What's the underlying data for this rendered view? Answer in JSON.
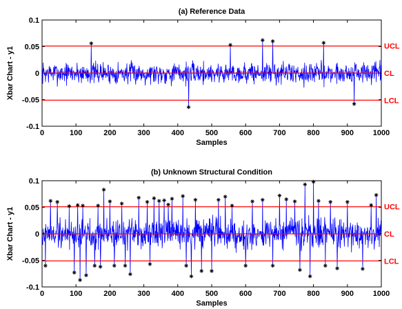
{
  "chart_data": [
    {
      "type": "line",
      "title": "(a) Reference Data",
      "xlabel": "Samples",
      "ylabel": "Xbar Chart - y1",
      "xlim": [
        0,
        1000
      ],
      "ylim": [
        -0.1,
        0.1
      ],
      "xticks": [
        0,
        100,
        200,
        300,
        400,
        500,
        600,
        700,
        800,
        900,
        1000
      ],
      "yticks": [
        -0.1,
        -0.05,
        0,
        0.05,
        0.1
      ],
      "ytick_labels": [
        "-0.1",
        "-0.05",
        "0",
        "0.05",
        "0.1"
      ],
      "series_color": "#0000ff",
      "control_color": "#ff0000",
      "control_limits": [
        {
          "label": "UCL",
          "value": 0.051
        },
        {
          "label": "CL",
          "value": 0.0
        },
        {
          "label": "LCL",
          "value": -0.051
        }
      ],
      "noise_amplitude": 0.03,
      "seed": 7,
      "n": 1000,
      "outliers": [
        {
          "x": 145,
          "y": 0.056
        },
        {
          "x": 432,
          "y": -0.064
        },
        {
          "x": 555,
          "y": 0.053
        },
        {
          "x": 650,
          "y": 0.062
        },
        {
          "x": 680,
          "y": 0.06
        },
        {
          "x": 830,
          "y": 0.057
        },
        {
          "x": 920,
          "y": -0.058
        }
      ]
    },
    {
      "type": "line",
      "title": "(b) Unknown Structural Condition",
      "xlabel": "Samples",
      "ylabel": "Xbar Chart - y1",
      "xlim": [
        0,
        1000
      ],
      "ylim": [
        -0.1,
        0.1
      ],
      "xticks": [
        0,
        100,
        200,
        300,
        400,
        500,
        600,
        700,
        800,
        900,
        1000
      ],
      "yticks": [
        -0.1,
        -0.05,
        0,
        0.05,
        0.1
      ],
      "ytick_labels": [
        "-0.1",
        "-0.05",
        "0",
        "0.05",
        "0.1"
      ],
      "series_color": "#0000ff",
      "control_color": "#ff0000",
      "control_limits": [
        {
          "label": "UCL",
          "value": 0.051
        },
        {
          "label": "CL",
          "value": 0.0
        },
        {
          "label": "LCL",
          "value": -0.051
        }
      ],
      "noise_amplitude": 0.042,
      "seed": 19,
      "n": 1000,
      "outliers": [
        {
          "x": 10,
          "y": -0.06
        },
        {
          "x": 25,
          "y": 0.062
        },
        {
          "x": 45,
          "y": 0.06
        },
        {
          "x": 80,
          "y": 0.052
        },
        {
          "x": 95,
          "y": -0.073
        },
        {
          "x": 105,
          "y": 0.054
        },
        {
          "x": 112,
          "y": -0.087
        },
        {
          "x": 120,
          "y": 0.053
        },
        {
          "x": 130,
          "y": -0.078
        },
        {
          "x": 155,
          "y": -0.06
        },
        {
          "x": 165,
          "y": 0.053
        },
        {
          "x": 172,
          "y": -0.062
        },
        {
          "x": 182,
          "y": 0.083
        },
        {
          "x": 200,
          "y": 0.061
        },
        {
          "x": 213,
          "y": -0.06
        },
        {
          "x": 235,
          "y": 0.057
        },
        {
          "x": 245,
          "y": -0.06
        },
        {
          "x": 260,
          "y": -0.076
        },
        {
          "x": 285,
          "y": 0.068
        },
        {
          "x": 310,
          "y": 0.06
        },
        {
          "x": 318,
          "y": -0.057
        },
        {
          "x": 330,
          "y": 0.067
        },
        {
          "x": 345,
          "y": 0.062
        },
        {
          "x": 360,
          "y": 0.063
        },
        {
          "x": 372,
          "y": 0.055
        },
        {
          "x": 383,
          "y": 0.066
        },
        {
          "x": 415,
          "y": 0.071
        },
        {
          "x": 425,
          "y": -0.06
        },
        {
          "x": 440,
          "y": -0.08
        },
        {
          "x": 452,
          "y": 0.064
        },
        {
          "x": 470,
          "y": -0.07
        },
        {
          "x": 500,
          "y": -0.07
        },
        {
          "x": 520,
          "y": 0.064
        },
        {
          "x": 540,
          "y": 0.07
        },
        {
          "x": 560,
          "y": 0.053
        },
        {
          "x": 600,
          "y": -0.06
        },
        {
          "x": 620,
          "y": 0.061
        },
        {
          "x": 650,
          "y": 0.064
        },
        {
          "x": 680,
          "y": -0.06
        },
        {
          "x": 700,
          "y": 0.072
        },
        {
          "x": 720,
          "y": 0.065
        },
        {
          "x": 745,
          "y": 0.061
        },
        {
          "x": 760,
          "y": -0.068
        },
        {
          "x": 775,
          "y": 0.093
        },
        {
          "x": 790,
          "y": -0.08
        },
        {
          "x": 800,
          "y": 0.098
        },
        {
          "x": 815,
          "y": 0.062
        },
        {
          "x": 835,
          "y": -0.06
        },
        {
          "x": 850,
          "y": 0.06
        },
        {
          "x": 870,
          "y": -0.065
        },
        {
          "x": 900,
          "y": 0.06
        },
        {
          "x": 945,
          "y": -0.066
        },
        {
          "x": 970,
          "y": 0.054
        },
        {
          "x": 985,
          "y": 0.073
        }
      ]
    }
  ]
}
